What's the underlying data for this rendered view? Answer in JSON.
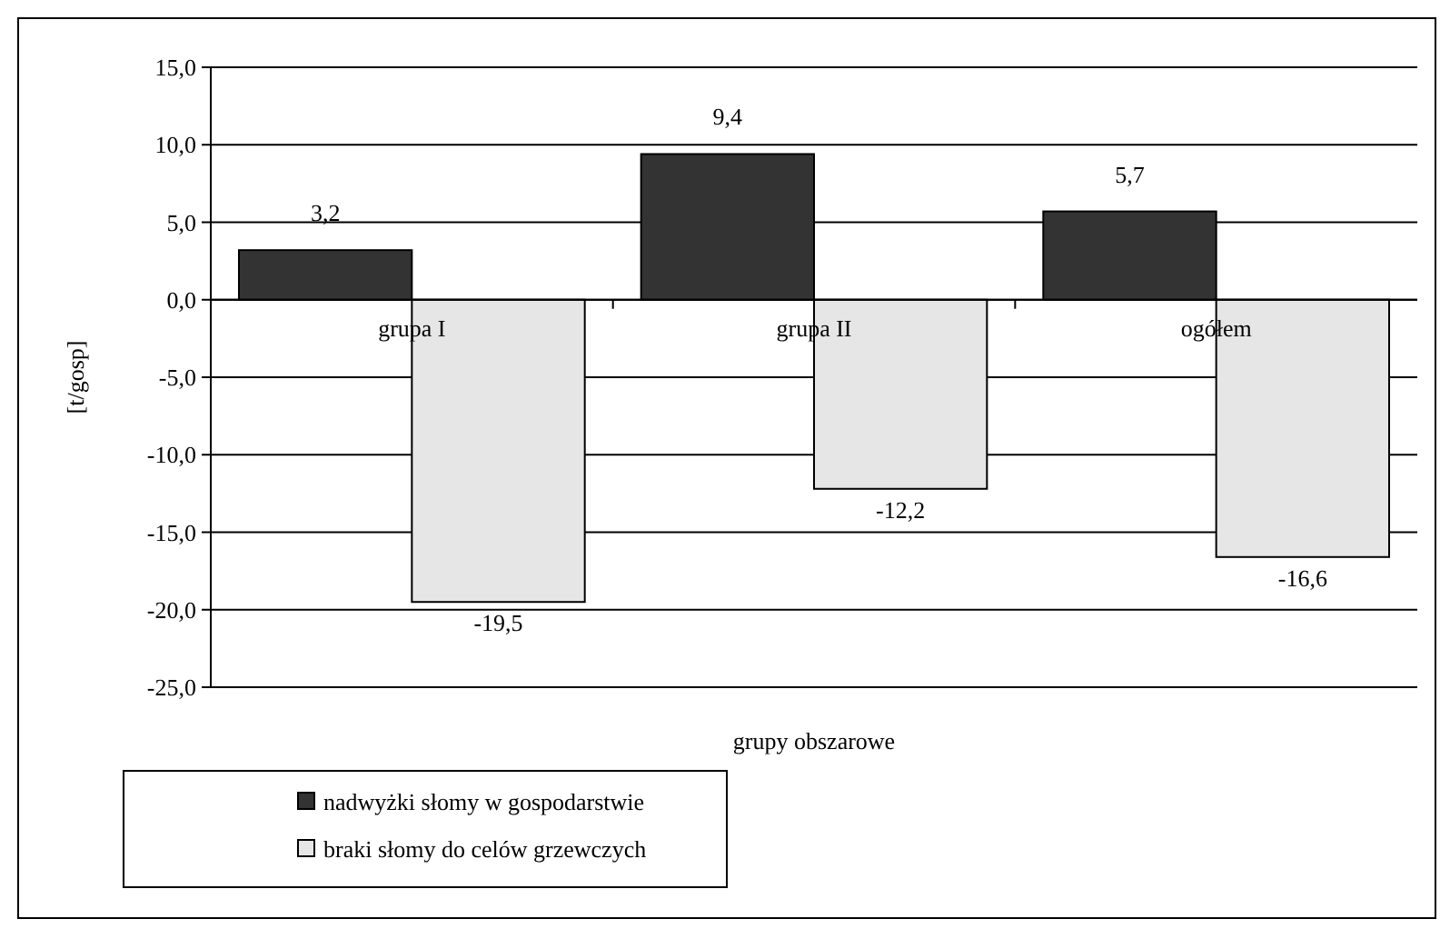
{
  "chart_data": {
    "type": "bar",
    "xlabel": "grupy obszarowe",
    "ylabel": "[t/gosp]",
    "categories": [
      "grupa I",
      "grupa II",
      "ogółem"
    ],
    "series": [
      {
        "name": "nadwyżki słomy w gospodarstwie",
        "color": "#333333",
        "values": [
          3.2,
          9.4,
          5.7
        ],
        "value_labels": [
          "3,2",
          "9,4",
          "5,7"
        ]
      },
      {
        "name": "braki słomy do celów grzewczych",
        "color": "#e6e6e6",
        "values": [
          -19.5,
          -12.2,
          -16.6
        ],
        "value_labels": [
          "-19,5",
          "-12,2",
          "-16,6"
        ]
      }
    ],
    "ylim": [
      -25,
      15
    ],
    "yticks": [
      {
        "value": -25,
        "label": "-25,0"
      },
      {
        "value": -20,
        "label": "-20,0"
      },
      {
        "value": -15,
        "label": "-15,0"
      },
      {
        "value": -10,
        "label": "-10,0"
      },
      {
        "value": -5,
        "label": "-5,0"
      },
      {
        "value": 0,
        "label": "0,0"
      },
      {
        "value": 5,
        "label": "5,0"
      },
      {
        "value": 10,
        "label": "10,0"
      },
      {
        "value": 15,
        "label": "15,0"
      }
    ],
    "grid": "y",
    "legend": "bottom left"
  }
}
